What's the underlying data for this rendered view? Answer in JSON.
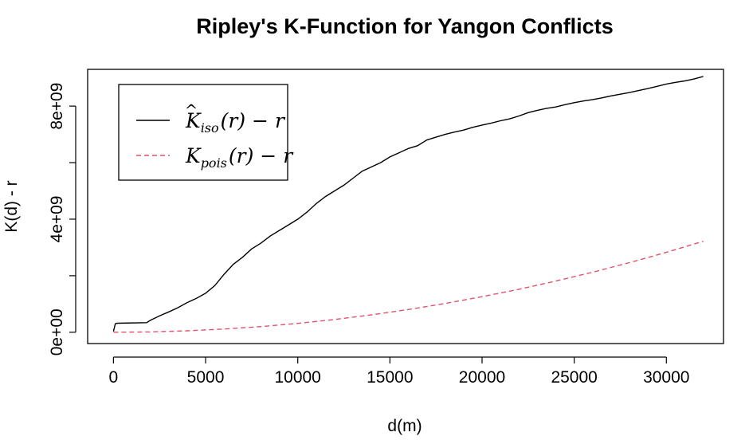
{
  "chart_data": {
    "type": "line",
    "title": "Ripley's K-Function for Yangon Conflicts",
    "xlabel": "d(m)",
    "ylabel": "K(d) - r",
    "xlim": [
      -1400,
      33100
    ],
    "ylim": [
      -400000000,
      9300000000
    ],
    "x_ticks": [
      0,
      5000,
      10000,
      15000,
      20000,
      25000,
      30000
    ],
    "x_tick_labels": [
      "0",
      "5000",
      "10000",
      "15000",
      "20000",
      "25000",
      "30000"
    ],
    "y_ticks": [
      0,
      2000000000,
      4000000000,
      6000000000,
      8000000000
    ],
    "y_tick_labels": [
      "0e+00",
      "",
      "4e+09",
      "",
      "8e+09"
    ],
    "grid": false,
    "legend_position": "top-left",
    "legend": [
      {
        "main": "K",
        "hat": "^",
        "sub": "iso",
        "rest": "(r) − r"
      },
      {
        "main": "K",
        "hat": "",
        "sub": "pois",
        "rest": "(r) − r"
      }
    ],
    "series": [
      {
        "color": "#000000",
        "dash": "solid",
        "x": [
          0,
          100,
          200,
          1800,
          2000,
          2500,
          3000,
          3500,
          4000,
          4500,
          5000,
          5500,
          6000,
          6500,
          7000,
          7500,
          8000,
          8500,
          9000,
          9500,
          10000,
          10500,
          11000,
          11500,
          12000,
          12500,
          13000,
          13500,
          14000,
          14500,
          15000,
          15500,
          16000,
          16500,
          17000,
          17500,
          18000,
          18500,
          19000,
          19500,
          20000,
          20500,
          21000,
          21500,
          22000,
          22500,
          23000,
          23500,
          24000,
          24500,
          25000,
          25500,
          26000,
          26500,
          27000,
          27500,
          28000,
          28500,
          29000,
          29500,
          30000,
          30500,
          31000,
          31500,
          32000
        ],
        "y": [
          30000000,
          300000000,
          320000000,
          340000000,
          420000000,
          580000000,
          720000000,
          870000000,
          1050000000,
          1200000000,
          1380000000,
          1650000000,
          2050000000,
          2400000000,
          2650000000,
          2950000000,
          3150000000,
          3400000000,
          3600000000,
          3800000000,
          4000000000,
          4250000000,
          4550000000,
          4800000000,
          5000000000,
          5200000000,
          5450000000,
          5700000000,
          5850000000,
          6000000000,
          6200000000,
          6350000000,
          6500000000,
          6600000000,
          6800000000,
          6900000000,
          7000000000,
          7080000000,
          7150000000,
          7250000000,
          7330000000,
          7400000000,
          7480000000,
          7550000000,
          7650000000,
          7770000000,
          7850000000,
          7920000000,
          7970000000,
          8050000000,
          8120000000,
          8180000000,
          8230000000,
          8290000000,
          8360000000,
          8420000000,
          8480000000,
          8550000000,
          8620000000,
          8700000000,
          8780000000,
          8840000000,
          8890000000,
          8960000000,
          9050000000
        ]
      },
      {
        "color": "#df536b",
        "dash": "dashed",
        "x": [
          0,
          2000,
          4000,
          6000,
          8000,
          10000,
          12000,
          14000,
          16000,
          18000,
          20000,
          22000,
          24000,
          26000,
          28000,
          30000,
          32000
        ],
        "y": [
          0,
          12600000,
          50300000,
          113000000,
          201000000,
          314000000,
          452000000,
          616000000,
          804000000,
          1018000000,
          1257000000,
          1521000000,
          1810000000,
          2124000000,
          2463000000,
          2827000000,
          3217000000
        ]
      }
    ]
  }
}
